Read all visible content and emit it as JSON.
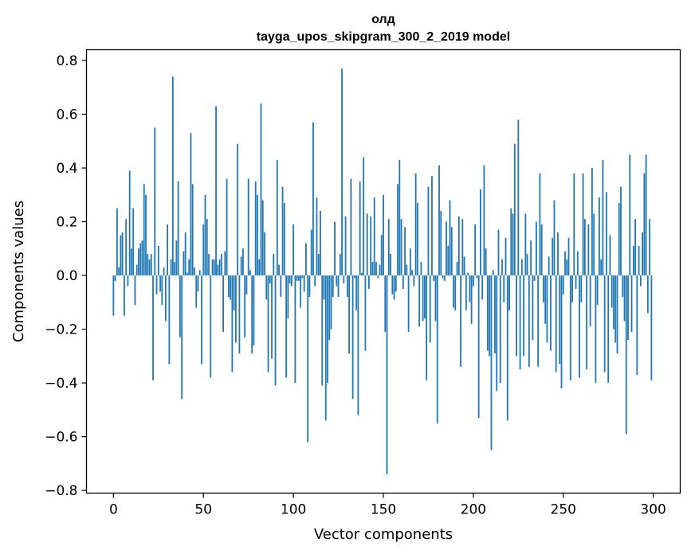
{
  "chart_data": {
    "type": "bar",
    "title": "олд",
    "subtitle": "tayga_upos_skipgram_300_2_2019 model",
    "xlabel": "Vector components",
    "ylabel": "Components values",
    "xlim": [
      -15,
      315
    ],
    "ylim": [
      -0.81,
      0.84
    ],
    "xticks": [
      0,
      50,
      100,
      150,
      200,
      250,
      300
    ],
    "xtick_labels": [
      "0",
      "50",
      "100",
      "150",
      "200",
      "250",
      "300"
    ],
    "yticks": [
      -0.8,
      -0.6,
      -0.4,
      -0.2,
      0.0,
      0.2,
      0.4,
      0.6,
      0.8
    ],
    "ytick_labels": [
      "−0.8",
      "−0.6",
      "−0.4",
      "−0.2",
      "0.0",
      "0.2",
      "0.4",
      "0.6",
      "0.8"
    ],
    "bar_color": "#1f77b4",
    "grid": false,
    "values": [
      -0.15,
      -0.02,
      0.25,
      0.03,
      0.15,
      0.16,
      -0.15,
      0.21,
      -0.04,
      0.39,
      0.1,
      0.25,
      -0.11,
      0.04,
      0.1,
      0.12,
      0.13,
      0.34,
      0.3,
      0.08,
      0.06,
      0.08,
      -0.39,
      0.55,
      -0.07,
      0.11,
      -0.06,
      -0.11,
      0.03,
      -0.17,
      0.19,
      -0.33,
      0.06,
      0.74,
      0.05,
      0.13,
      0.35,
      -0.23,
      -0.46,
      0.09,
      0.16,
      0.01,
      0.06,
      0.53,
      0.34,
      0.03,
      -0.12,
      -0.06,
      0.02,
      -0.33,
      0.19,
      0.3,
      0.21,
      0.08,
      -0.38,
      0.06,
      0.06,
      0.63,
      0.04,
      0.06,
      0.08,
      -0.21,
      0.09,
      0.36,
      -0.08,
      -0.09,
      -0.36,
      -0.13,
      -0.25,
      0.49,
      -0.29,
      0.07,
      0.1,
      -0.23,
      -0.07,
      0.36,
      0.02,
      -0.29,
      -0.26,
      0.35,
      0.3,
      0.06,
      0.64,
      0.28,
      0.16,
      -0.09,
      -0.36,
      -0.03,
      -0.31,
      0.08,
      -0.41,
      0.43,
      0.04,
      -0.08,
      0.33,
      0.27,
      -0.38,
      -0.16,
      -0.03,
      -0.04,
      0.19,
      -0.4,
      -0.02,
      -0.02,
      -0.12,
      -0.01,
      -0.06,
      0.12,
      -0.62,
      -0.08,
      0.17,
      0.57,
      -0.04,
      0.29,
      0.08,
      0.24,
      -0.41,
      -0.09,
      -0.54,
      -0.4,
      -0.24,
      -0.2,
      -0.08,
      0.2,
      -0.04,
      -0.08,
      0.08,
      0.77,
      -0.03,
      0.22,
      -0.08,
      -0.29,
      0.36,
      -0.46,
      -0.01,
      -0.13,
      -0.52,
      0.35,
      0.01,
      0.44,
      -0.28,
      0.23,
      -0.05,
      0.22,
      0.05,
      0.29,
      0.05,
      -0.01,
      0.04,
      0.15,
      0.3,
      -0.21,
      -0.74,
      0.21,
      0.08,
      -0.07,
      -0.09,
      -0.06,
      0.34,
      0.43,
      0.21,
      -0.05,
      0.18,
      0.04,
      -0.21,
      0.1,
      0.02,
      -0.04,
      0.38,
      0.27,
      -0.19,
      0.05,
      -0.17,
      -0.16,
      -0.39,
      0.33,
      -0.25,
      0.37,
      -0.02,
      -0.17,
      -0.55,
      0.41,
      0.24,
      -0.01,
      -0.02,
      0.2,
      0.11,
      0.28,
      0.18,
      -0.12,
      -0.13,
      0.05,
      0.22,
      -0.34,
      0.21,
      0.07,
      -0.13,
      0.01,
      -0.1,
      -0.18,
      -0.04,
      0.19,
      -0.01,
      -0.53,
      0.32,
      -0.09,
      0.41,
      0.1,
      -0.28,
      -0.3,
      -0.65,
      0.02,
      -0.29,
      -0.43,
      0.17,
      -0.4,
      0.06,
      -0.1,
      0.14,
      -0.54,
      -0.13,
      0.25,
      0.23,
      0.49,
      -0.3,
      0.58,
      -0.35,
      0.06,
      -0.3,
      0.23,
      0.08,
      -0.34,
      0.13,
      -0.24,
      -0.02,
      0.2,
      -0.34,
      0.38,
      0.19,
      -0.1,
      -0.18,
      -0.25,
      0.07,
      -0.28,
      0.14,
      0.28,
      -0.36,
      0.16,
      -0.33,
      -0.42,
      -0.07,
      0.09,
      0.06,
      0.14,
      -0.39,
      -0.1,
      0.38,
      -0.05,
      0.09,
      -0.38,
      -0.1,
      0.38,
      0.21,
      -0.35,
      0.19,
      -0.19,
      0.4,
      0.23,
      -0.4,
      -0.11,
      0.29,
      0.06,
      0.43,
      -0.36,
      0.31,
      -0.4,
      0.15,
      -0.12,
      -0.2,
      -0.25,
      -0.29,
      0.27,
      0.33,
      -0.08,
      -0.17,
      -0.59,
      -0.24,
      0.45,
      -0.21,
      0.11,
      0.21,
      -0.37,
      0.11,
      -0.04,
      0.16,
      0.38,
      0.45,
      -0.14,
      0.21,
      -0.39
    ]
  }
}
